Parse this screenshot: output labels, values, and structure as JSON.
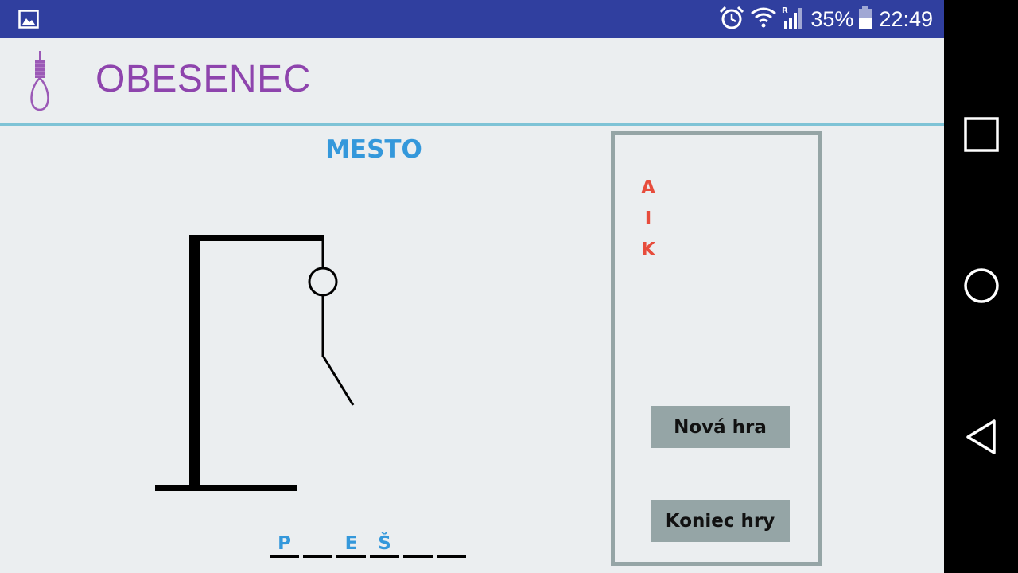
{
  "status_bar": {
    "battery_percent": "35%",
    "time": "22:49",
    "icons": [
      "gallery-icon",
      "alarm-icon",
      "wifi-icon",
      "signal-icon",
      "battery-icon"
    ]
  },
  "app_bar": {
    "title": "OBESENEC",
    "logo": "noose-icon"
  },
  "game": {
    "category": "MESTO",
    "word_slots": [
      "P",
      "",
      "E",
      "Š",
      "",
      ""
    ],
    "wrong_guesses": [
      "A",
      "I",
      "K"
    ],
    "mistakes": 6
  },
  "buttons": {
    "new_game": "Nová hra",
    "end_game": "Koniec hry"
  },
  "colors": {
    "title": "#8e44ad",
    "category": "#3498db",
    "wrong_letters": "#e74c3c",
    "panel": "#95a5a6",
    "status_bar": "#303f9f"
  }
}
